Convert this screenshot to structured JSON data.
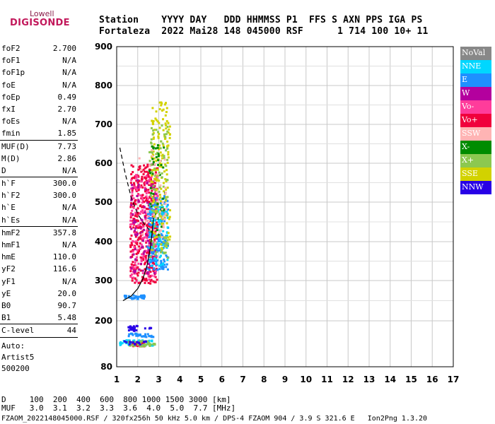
{
  "logo": {
    "small": "Lowell",
    "big": "DIGISONDE"
  },
  "header": {
    "line1": "Station    YYYY DAY   DDD HHMMSS P1  FFS S AXN PPS IGA PS",
    "line2": "Fortaleza  2022 Mai28 148 045000 RSF      1 714 100 10+ 11"
  },
  "params": {
    "group1": [
      {
        "label": "foF2",
        "value": "2.700"
      },
      {
        "label": "foF1",
        "value": "N/A"
      },
      {
        "label": "foF1p",
        "value": "N/A"
      },
      {
        "label": "foE",
        "value": "N/A"
      },
      {
        "label": "foEp",
        "value": "0.49"
      },
      {
        "label": "fxI",
        "value": "2.70"
      },
      {
        "label": "foEs",
        "value": "N/A"
      },
      {
        "label": "fmin",
        "value": "1.85"
      }
    ],
    "group2": [
      {
        "label": "MUF(D)",
        "value": "7.73"
      },
      {
        "label": "M(D)",
        "value": "2.86"
      },
      {
        "label": "D",
        "value": "N/A"
      }
    ],
    "group3": [
      {
        "label": "h`F",
        "value": "300.0"
      },
      {
        "label": "h`F2",
        "value": "300.0"
      },
      {
        "label": "h`E",
        "value": "N/A"
      },
      {
        "label": "h`Es",
        "value": "N/A"
      }
    ],
    "group4": [
      {
        "label": "hmF2",
        "value": "357.8"
      },
      {
        "label": "hmF1",
        "value": "N/A"
      },
      {
        "label": "hmE",
        "value": "110.0"
      },
      {
        "label": "yF2",
        "value": "116.6"
      },
      {
        "label": "yF1",
        "value": "N/A"
      },
      {
        "label": "yE",
        "value": "20.0"
      },
      {
        "label": "B0",
        "value": "90.7"
      },
      {
        "label": "B1",
        "value": "5.48"
      }
    ],
    "group5": [
      {
        "label": "C-level",
        "value": "44"
      }
    ],
    "auto_lines": [
      "Auto:",
      "Artist5",
      "500200"
    ]
  },
  "legend": [
    {
      "label": "NoVal",
      "color": "#888888"
    },
    {
      "label": "NNE",
      "color": "#00d7ff"
    },
    {
      "label": "E",
      "color": "#1e90ff"
    },
    {
      "label": "W",
      "color": "#b4009e"
    },
    {
      "label": "Vo-",
      "color": "#ff3c9b"
    },
    {
      "label": "Vo+",
      "color": "#f0003c"
    },
    {
      "label": "SSW",
      "color": "#ffb4b4"
    },
    {
      "label": "X-",
      "color": "#008c00"
    },
    {
      "label": "X+",
      "color": "#8cc850"
    },
    {
      "label": "SSE",
      "color": "#d2d200"
    },
    {
      "label": "NNW",
      "color": "#2800e6"
    }
  ],
  "bottom": {
    "d_line": "D     100  200  400  600  800 1000 1500 3000 [km]",
    "muf_line": "MUF   3.0  3.1  3.2  3.3  3.6  4.0  5.0  7.7 [MHz]",
    "footer": "FZAOM_2022148045000.RSF / 320fx256h 50 kHz 5.0 km / DPS-4 FZAOM 904 / 3.9 S 321.6 E   Ion2Png 1.3.20"
  },
  "chart_data": {
    "type": "scatter",
    "xlim": [
      1,
      17
    ],
    "ylim": [
      80,
      900
    ],
    "x_ticks": [
      "1",
      "2",
      "3",
      "4",
      "5",
      "6",
      "7",
      "8",
      "9",
      "10",
      "11",
      "12",
      "13",
      "14",
      "15",
      "16",
      "17"
    ],
    "y_ticks": [
      "80",
      "200",
      "300",
      "400",
      "500",
      "600",
      "700",
      "800",
      "900"
    ],
    "y_tick_values": [
      80,
      200,
      300,
      400,
      500,
      600,
      700,
      800,
      900
    ],
    "grid": true,
    "profile_curve": [
      [
        1.3,
        250
      ],
      [
        1.7,
        262
      ],
      [
        2.0,
        280
      ],
      [
        2.25,
        305
      ],
      [
        2.45,
        340
      ],
      [
        2.6,
        385
      ],
      [
        2.7,
        430
      ],
      [
        2.75,
        460
      ]
    ],
    "dashed_curve": [
      [
        1.15,
        640
      ],
      [
        1.4,
        575
      ],
      [
        1.7,
        510
      ],
      [
        2.0,
        470
      ],
      [
        2.3,
        445
      ],
      [
        2.55,
        430
      ]
    ],
    "clusters": [
      {
        "color_ref": 5,
        "xr": [
          1.6,
          2.9
        ],
        "yr": [
          295,
          600
        ],
        "n": 420
      },
      {
        "color_ref": 4,
        "xr": [
          1.6,
          2.9
        ],
        "yr": [
          300,
          580
        ],
        "n": 160
      },
      {
        "color_ref": 3,
        "xr": [
          1.6,
          2.9
        ],
        "yr": [
          320,
          560
        ],
        "n": 90
      },
      {
        "color_ref": 2,
        "xr": [
          2.4,
          3.4
        ],
        "yr": [
          330,
          520
        ],
        "n": 160
      },
      {
        "color_ref": 1,
        "xr": [
          2.5,
          3.4
        ],
        "yr": [
          340,
          500
        ],
        "n": 80
      },
      {
        "color_ref": 9,
        "xr": [
          2.6,
          3.5
        ],
        "yr": [
          380,
          760
        ],
        "n": 170
      },
      {
        "color_ref": 8,
        "xr": [
          2.5,
          3.4
        ],
        "yr": [
          360,
          700
        ],
        "n": 90
      },
      {
        "color_ref": 7,
        "xr": [
          2.5,
          3.3
        ],
        "yr": [
          400,
          650
        ],
        "n": 40
      },
      {
        "color_ref": 6,
        "xr": [
          2.0,
          3.3
        ],
        "yr": [
          400,
          650
        ],
        "n": 40
      },
      {
        "color_ref": 2,
        "xr": [
          1.3,
          2.3
        ],
        "yr": [
          256,
          266
        ],
        "n": 40
      },
      {
        "color_ref": 10,
        "xr": [
          1.5,
          1.95
        ],
        "yr": [
          176,
          190
        ],
        "n": 25
      },
      {
        "color_ref": 10,
        "xr": [
          2.3,
          2.6
        ],
        "yr": [
          180,
          186
        ],
        "n": 5
      },
      {
        "color_ref": 2,
        "xr": [
          1.5,
          2.7
        ],
        "yr": [
          160,
          170
        ],
        "n": 30
      },
      {
        "color_ref": 1,
        "xr": [
          1.1,
          2.7
        ],
        "yr": [
          138,
          152
        ],
        "n": 70
      },
      {
        "color_ref": 5,
        "xr": [
          1.7,
          2.3
        ],
        "yr": [
          136,
          146
        ],
        "n": 40
      },
      {
        "color_ref": 8,
        "xr": [
          1.3,
          2.8
        ],
        "yr": [
          136,
          150
        ],
        "n": 40
      },
      {
        "color_ref": 10,
        "xr": [
          1.3,
          2.4
        ],
        "yr": [
          140,
          150
        ],
        "n": 15
      }
    ]
  }
}
